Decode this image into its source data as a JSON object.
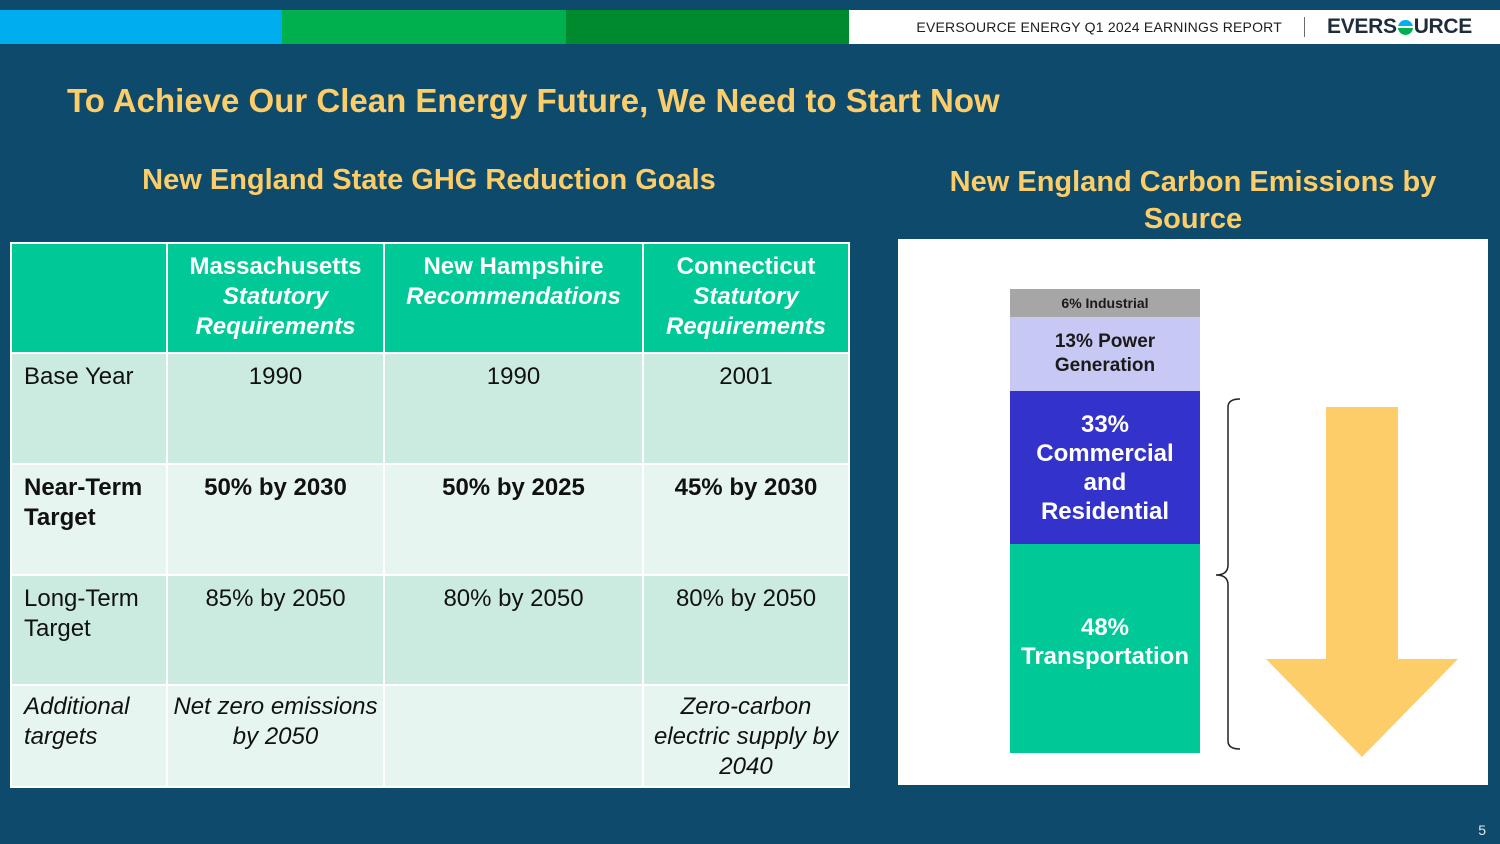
{
  "header": {
    "report_title": "EVERSOURCE ENERGY Q1 2024 EARNINGS REPORT",
    "logo_left": "EVERS",
    "logo_right": "URCE",
    "bar_colors": [
      "#00aeef",
      "#00b04f",
      "#008a2e"
    ]
  },
  "title": "To Achieve Our Clean Energy Future, We Need to Start Now",
  "left_heading": "New England State GHG Reduction Goals",
  "right_heading": "New England Carbon Emissions by Source",
  "table": {
    "columns": [
      {
        "line1": "Massachusetts",
        "line2": "Statutory Requirements"
      },
      {
        "line1": "New Hampshire",
        "line2": "Recommendations"
      },
      {
        "line1": "Connecticut",
        "line2": "Statutory Requirements"
      }
    ],
    "rows": [
      {
        "label": "Base Year",
        "values": [
          "1990",
          "1990",
          "2001"
        ]
      },
      {
        "label": "Near-Term Target",
        "values": [
          "50% by 2030",
          "50% by 2025",
          "45% by 2030"
        ]
      },
      {
        "label": "Long-Term Target",
        "values": [
          "85% by 2050",
          "80% by 2050",
          "80% by 2050"
        ]
      },
      {
        "label": "Additional targets",
        "values": [
          "Net zero emissions by 2050",
          "",
          "Zero-carbon electric supply by 2040"
        ]
      }
    ]
  },
  "chart_data": {
    "type": "bar",
    "title": "New England Carbon Emissions by Source",
    "stacked": true,
    "series": [
      {
        "name": "Industrial",
        "value": 6,
        "label": "6% Industrial",
        "color": "#a6a6a6"
      },
      {
        "name": "Power Generation",
        "value": 13,
        "label": "13% Power Generation",
        "color": "#c8c8f5"
      },
      {
        "name": "Commercial and Residential",
        "value": 33,
        "label": "33% Commercial and Residential",
        "color": "#3333cc"
      },
      {
        "name": "Transportation",
        "value": 48,
        "label": "48% Transportation",
        "color": "#00c896"
      }
    ],
    "annotation_arrow_color": "#fccd69"
  },
  "page_number": "5"
}
